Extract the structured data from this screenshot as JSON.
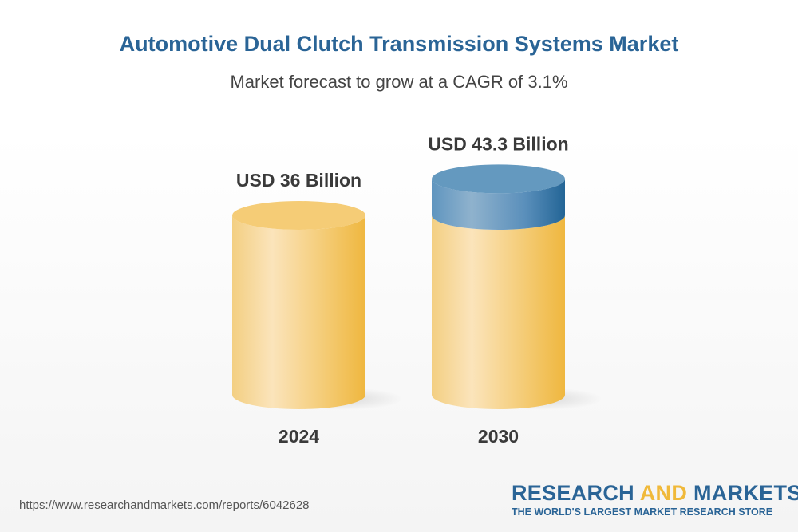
{
  "title": "Automotive Dual Clutch Transmission Systems Market",
  "subtitle": "Market forecast to grow at a CAGR of 3.1%",
  "chart_data": {
    "type": "bar",
    "style": "3d-cylinder",
    "categories": [
      "2024",
      "2030"
    ],
    "values": [
      36,
      43.3
    ],
    "data_labels": [
      "USD 36 Billion",
      "USD 43.3 Billion"
    ],
    "unit": "USD Billion",
    "cagr": "3.1%",
    "colors": {
      "base": "#f2c05a",
      "growth": "#2a6496"
    }
  },
  "footer": {
    "url": "https://www.researchandmarkets.com/reports/6042628",
    "logo_word1": "RESEARCH",
    "logo_word2": "AND",
    "logo_word3": "MARKETS",
    "logo_tagline": "THE WORLD'S LARGEST MARKET RESEARCH STORE"
  }
}
